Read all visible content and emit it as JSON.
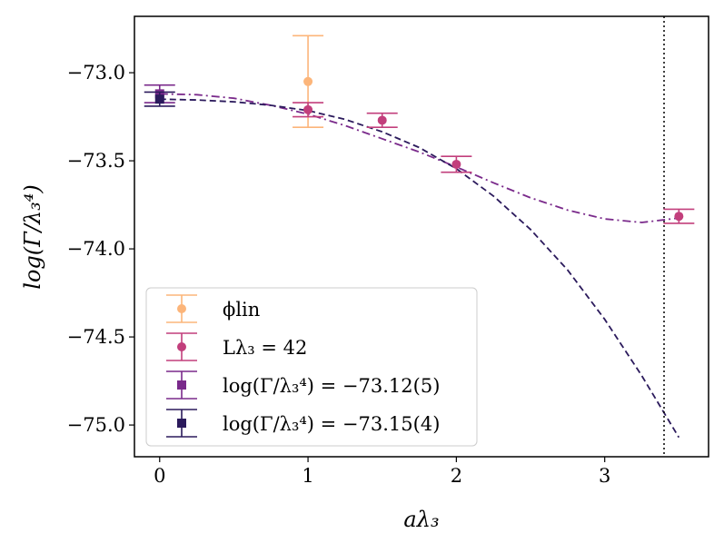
{
  "chart_data": {
    "type": "scatter",
    "title": "",
    "xlabel": "aλ₃",
    "ylabel": "log(Γ/λ₃⁴)",
    "xlim": [
      -0.17,
      3.7
    ],
    "ylim": [
      -75.18,
      -72.68
    ],
    "x_ticks": [
      0,
      1,
      2,
      3
    ],
    "x_tick_labels": [
      "0",
      "1",
      "2",
      "3"
    ],
    "y_ticks": [
      -73.0,
      -73.5,
      -74.0,
      -74.5,
      -75.0
    ],
    "y_tick_labels": [
      "−73.0",
      "−73.5",
      "−74.0",
      "−74.5",
      "−75.0"
    ],
    "grid": false,
    "legend_position": "lower-left",
    "vertical_line": {
      "x": 3.4,
      "style": "dotted",
      "color": "#000000"
    },
    "series": [
      {
        "name": "ϕ_lin",
        "legend_label": "ϕlin",
        "kind": "errorbar",
        "marker": "circle",
        "color": "#fcb57a",
        "points": [
          {
            "x": 1,
            "y": -73.05,
            "yerr": 0.26
          }
        ]
      },
      {
        "name": "Lλ₃ = 42",
        "legend_label": "Lλ₃ = 42",
        "kind": "errorbar",
        "marker": "circle",
        "color": "#c23f7c",
        "points": [
          {
            "x": 1,
            "y": -73.21,
            "yerr": 0.04
          },
          {
            "x": 1.5,
            "y": -73.27,
            "yerr": 0.04
          },
          {
            "x": 2,
            "y": -73.52,
            "yerr": 0.045
          },
          {
            "x": 3.5,
            "y": -73.815,
            "yerr": 0.04
          }
        ]
      },
      {
        "name": "log(Γ/λ₃⁴) = −73.12(5)",
        "legend_label": "log(Γ/λ₃⁴) = −73.12(5)",
        "kind": "errorbar",
        "marker": "square",
        "color": "#7a2a8b",
        "points": [
          {
            "x": 0,
            "y": -73.12,
            "yerr": 0.05
          }
        ]
      },
      {
        "name": "log(Γ/λ₃⁴) = −73.15(4)",
        "legend_label": "log(Γ/λ₃⁴) = −73.15(4)",
        "kind": "errorbar",
        "marker": "square",
        "color": "#2b1a5c",
        "points": [
          {
            "x": 0,
            "y": -73.15,
            "yerr": 0.04
          }
        ]
      },
      {
        "name": "fit-dashdot",
        "kind": "line",
        "style": "dashdot",
        "color": "#7a2a8b",
        "x": [
          0,
          0.25,
          0.5,
          0.75,
          1,
          1.25,
          1.5,
          1.75,
          2,
          2.25,
          2.5,
          2.75,
          3,
          3.25,
          3.5
        ],
        "y": [
          -73.12,
          -73.125,
          -73.145,
          -73.185,
          -73.235,
          -73.3,
          -73.375,
          -73.45,
          -73.535,
          -73.625,
          -73.71,
          -73.78,
          -73.83,
          -73.85,
          -73.825
        ]
      },
      {
        "name": "fit-dashed",
        "kind": "line",
        "style": "dashed",
        "color": "#2b1a5c",
        "x": [
          0,
          0.25,
          0.5,
          0.75,
          1,
          1.25,
          1.5,
          1.75,
          2,
          2.25,
          2.5,
          2.75,
          3,
          3.25,
          3.5
        ],
        "y": [
          -73.15,
          -73.155,
          -73.165,
          -73.185,
          -73.215,
          -73.265,
          -73.335,
          -73.425,
          -73.545,
          -73.7,
          -73.89,
          -74.12,
          -74.4,
          -74.72,
          -75.07
        ]
      }
    ]
  }
}
